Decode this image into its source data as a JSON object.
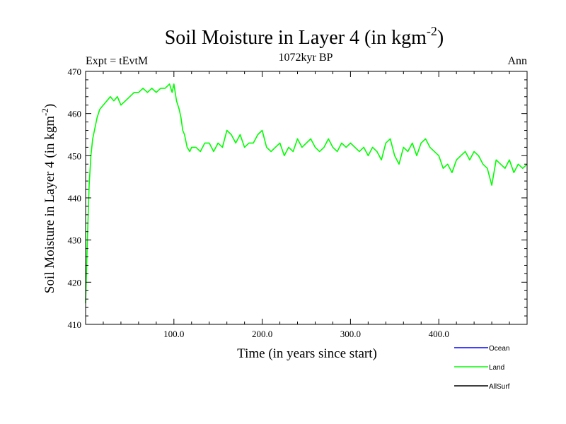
{
  "chart_data": {
    "type": "line",
    "title": "Soil Moisture in Layer 4 (in kgm",
    "title_sup": "-2",
    "title_close": ")",
    "subtitle_left": "Expt = tEvtM",
    "subtitle_center": "1072kyr BP",
    "subtitle_right": "Ann",
    "xlabel": "Time (in years since start)",
    "ylabel": "Soil Moisture in Layer 4 (in kgm",
    "ylabel_sup": "-2",
    "ylabel_close": ")",
    "xlim": [
      0,
      500
    ],
    "ylim": [
      410,
      470
    ],
    "x_ticks": [
      {
        "value": 100,
        "label": "100.0"
      },
      {
        "value": 200,
        "label": "200.0"
      },
      {
        "value": 300,
        "label": "300.0"
      },
      {
        "value": 400,
        "label": "400.0"
      }
    ],
    "y_ticks": [
      {
        "value": 410,
        "label": "410"
      },
      {
        "value": 420,
        "label": "420"
      },
      {
        "value": 430,
        "label": "430"
      },
      {
        "value": 440,
        "label": "440"
      },
      {
        "value": 450,
        "label": "450"
      },
      {
        "value": 460,
        "label": "460"
      },
      {
        "value": 470,
        "label": "470"
      }
    ],
    "legend": [
      {
        "name": "Ocean",
        "color": "#0000ff"
      },
      {
        "name": "Land",
        "color": "#00ff00"
      },
      {
        "name": "AllSurf",
        "color": "#000000"
      }
    ],
    "series": [
      {
        "name": "Land",
        "color": "#00ff00",
        "x": [
          0,
          2,
          4,
          6,
          8,
          10,
          13,
          16,
          20,
          24,
          28,
          32,
          36,
          40,
          45,
          50,
          55,
          60,
          65,
          70,
          75,
          80,
          85,
          90,
          95,
          98,
          100,
          103,
          106,
          108,
          110,
          112,
          115,
          118,
          120,
          125,
          130,
          135,
          140,
          145,
          150,
          155,
          160,
          165,
          170,
          175,
          180,
          185,
          190,
          195,
          200,
          205,
          210,
          215,
          220,
          225,
          230,
          235,
          240,
          245,
          250,
          255,
          260,
          265,
          270,
          275,
          280,
          285,
          290,
          295,
          300,
          305,
          310,
          315,
          320,
          325,
          330,
          335,
          340,
          345,
          350,
          355,
          360,
          365,
          370,
          375,
          380,
          385,
          390,
          395,
          400,
          405,
          410,
          415,
          420,
          425,
          430,
          435,
          440,
          445,
          450,
          455,
          460,
          465,
          470,
          475,
          480,
          485,
          490,
          495,
          500
        ],
        "values": [
          415,
          430,
          443,
          450,
          454,
          456,
          459,
          461,
          462,
          463,
          464,
          463,
          464,
          462,
          463,
          464,
          465,
          465,
          466,
          465,
          466,
          465,
          466,
          466,
          467,
          465,
          467,
          463,
          461,
          459,
          456,
          455,
          452,
          451,
          452,
          452,
          451,
          453,
          453,
          451,
          453,
          452,
          456,
          455,
          453,
          455,
          452,
          453,
          453,
          455,
          456,
          452,
          451,
          452,
          453,
          450,
          452,
          451,
          454,
          452,
          453,
          454,
          452,
          451,
          452,
          454,
          452,
          451,
          453,
          452,
          453,
          452,
          451,
          452,
          450,
          452,
          451,
          449,
          453,
          454,
          450,
          448,
          452,
          451,
          453,
          450,
          453,
          454,
          452,
          451,
          450,
          447,
          448,
          446,
          449,
          450,
          451,
          449,
          451,
          450,
          448,
          447,
          443,
          449,
          448,
          447,
          449,
          446,
          448,
          447,
          448
        ]
      }
    ]
  }
}
